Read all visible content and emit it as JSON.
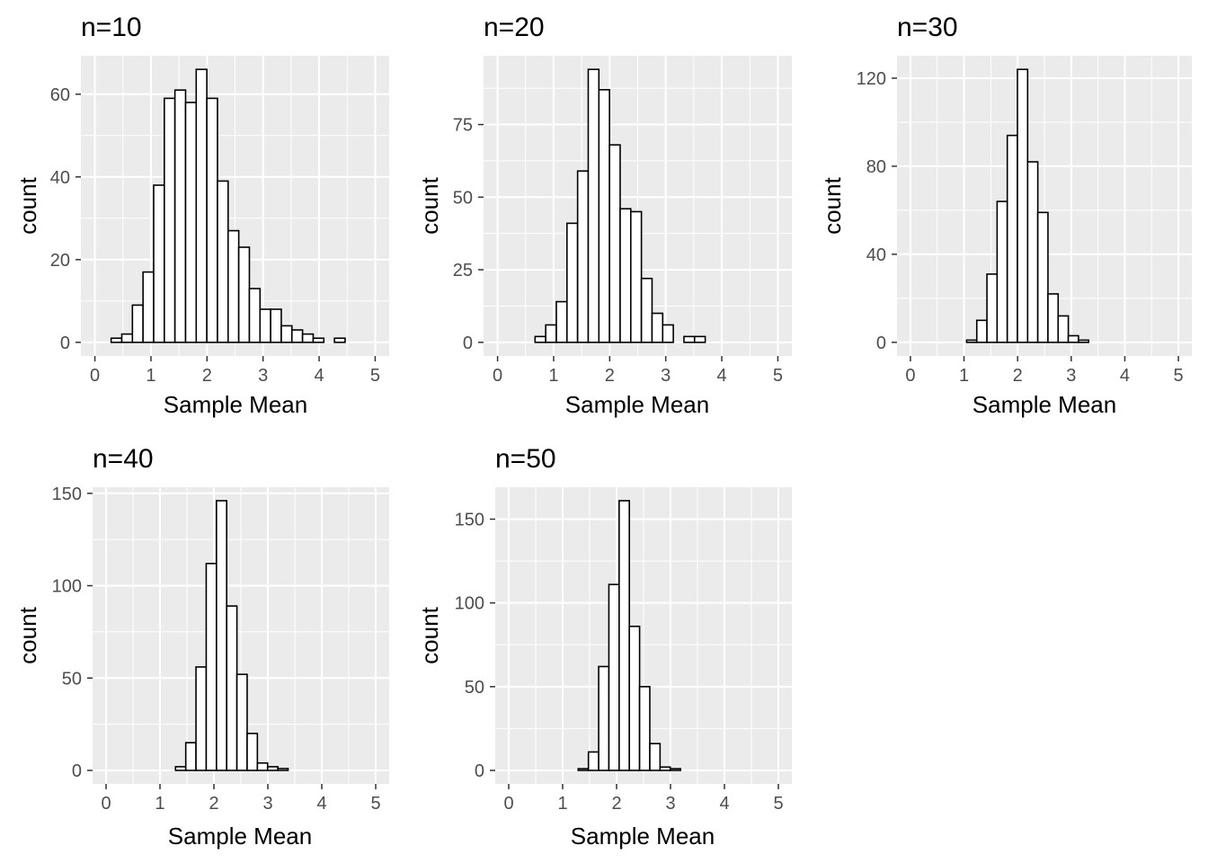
{
  "chart_data": [
    {
      "type": "bar",
      "title": "n=10",
      "xlabel": "Sample Mean",
      "ylabel": "count",
      "xlim": [
        -0.25,
        5.25
      ],
      "ylim": [
        -3.3,
        69.3
      ],
      "xticks": [
        0,
        1,
        2,
        3,
        4,
        5
      ],
      "yticks": [
        0,
        20,
        40,
        60
      ],
      "bin_width": 0.1897,
      "bin_start": 0.1,
      "values": [
        0,
        1,
        2,
        9,
        17,
        38,
        59,
        61,
        58,
        66,
        59,
        39,
        27,
        23,
        13,
        8,
        8,
        4,
        3,
        2,
        1,
        0,
        1,
        0
      ]
    },
    {
      "type": "bar",
      "title": "n=20",
      "xlabel": "Sample Mean",
      "ylabel": "count",
      "xlim": [
        -0.25,
        5.25
      ],
      "ylim": [
        -4.7,
        98.7
      ],
      "xticks": [
        0,
        1,
        2,
        3,
        4,
        5
      ],
      "yticks": [
        0,
        25,
        50,
        75
      ],
      "bin_width": 0.1897,
      "bin_start": 0.1,
      "values": [
        0,
        0,
        0,
        2,
        6,
        14,
        41,
        59,
        94,
        87,
        68,
        46,
        45,
        22,
        10,
        6,
        0,
        2,
        2,
        0,
        0,
        0,
        0,
        0,
        0,
        0
      ]
    },
    {
      "type": "bar",
      "title": "n=30",
      "xlabel": "Sample Mean",
      "ylabel": "count",
      "xlim": [
        -0.25,
        5.25
      ],
      "ylim": [
        -6.2,
        130.2
      ],
      "xticks": [
        0,
        1,
        2,
        3,
        4,
        5
      ],
      "yticks": [
        0,
        40,
        80,
        120
      ],
      "bin_width": 0.1897,
      "bin_start": 0.1,
      "values": [
        0,
        0,
        0,
        0,
        0,
        1,
        10,
        31,
        64,
        94,
        124,
        82,
        59,
        22,
        12,
        3,
        1,
        0,
        0,
        0,
        0,
        0,
        0,
        0,
        0,
        0
      ]
    },
    {
      "type": "bar",
      "title": "n=40",
      "xlabel": "Sample Mean",
      "ylabel": "count",
      "xlim": [
        -0.25,
        5.25
      ],
      "ylim": [
        -7.3,
        153.3
      ],
      "xticks": [
        0,
        1,
        2,
        3,
        4,
        5
      ],
      "yticks": [
        0,
        50,
        100,
        150
      ],
      "bin_width": 0.1897,
      "bin_start": 0.15,
      "values": [
        0,
        0,
        0,
        0,
        0,
        0,
        2,
        15,
        56,
        112,
        146,
        89,
        52,
        20,
        4,
        2,
        1,
        0,
        0,
        0,
        0,
        0,
        0,
        0,
        0,
        0
      ]
    },
    {
      "type": "bar",
      "title": "n=50",
      "xlabel": "Sample Mean",
      "ylabel": "count",
      "xlim": [
        -0.25,
        5.25
      ],
      "ylim": [
        -8.05,
        169.05
      ],
      "xticks": [
        0,
        1,
        2,
        3,
        4,
        5
      ],
      "yticks": [
        0,
        50,
        100,
        150
      ],
      "bin_width": 0.1897,
      "bin_start": 0.15,
      "values": [
        0,
        0,
        0,
        0,
        0,
        0,
        1,
        11,
        62,
        111,
        161,
        86,
        50,
        16,
        2,
        1,
        0,
        0,
        0,
        0,
        0,
        0,
        0,
        0,
        0,
        0
      ]
    }
  ]
}
